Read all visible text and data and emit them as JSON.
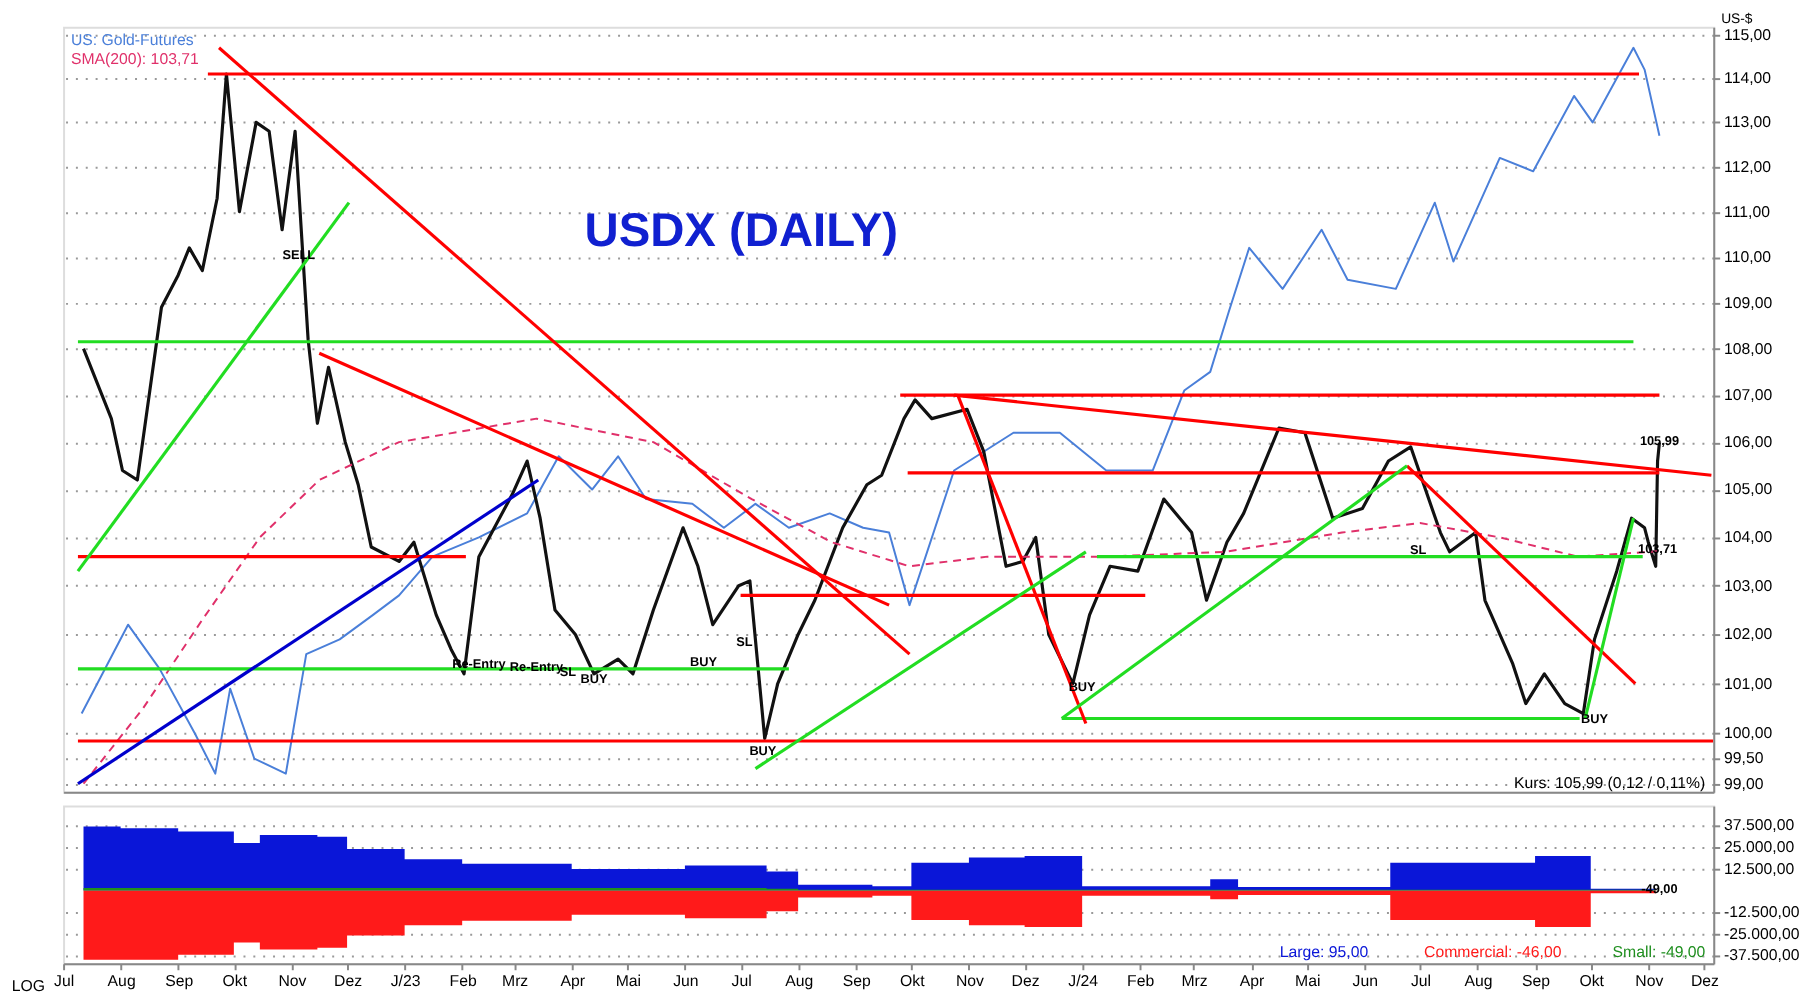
{
  "chart_data": [
    {
      "type": "line",
      "title": "USDX (DAILY)",
      "ylabel": "US-$",
      "log": true,
      "grid": "y",
      "legend": "top left",
      "tick_labels": "y",
      "marker": "none",
      "xlim": [
        "2022-07-01",
        "2024-12-06"
      ],
      "ylim": [
        98.84,
        115.18
      ],
      "yticks": [
        {
          "value": 99,
          "label": "99,00"
        },
        {
          "value": 99.5,
          "label": "99,50"
        },
        {
          "value": 100,
          "label": "100,00"
        },
        {
          "value": 101,
          "label": "101,00"
        },
        {
          "value": 102,
          "label": "102,00"
        },
        {
          "value": 103,
          "label": "103,00"
        },
        {
          "value": 104,
          "label": "104,00"
        },
        {
          "value": 105,
          "label": "105,00"
        },
        {
          "value": 106,
          "label": "106,00"
        },
        {
          "value": 107,
          "label": "107,00"
        },
        {
          "value": 108,
          "label": "108,00"
        },
        {
          "value": 109,
          "label": "109,00"
        },
        {
          "value": 110,
          "label": "110,00"
        },
        {
          "value": 111,
          "label": "111,00"
        },
        {
          "value": 112,
          "label": "112,00"
        },
        {
          "value": 113,
          "label": "113,00"
        },
        {
          "value": 114,
          "label": "114,00"
        },
        {
          "value": 115,
          "label": "115,00"
        }
      ],
      "series": [
        {
          "name": "US: Gold-Futures",
          "color": "#4a7fd9",
          "x": [
            "2022-07-11",
            "2022-08-05",
            "2022-08-22",
            "2022-09-10",
            "2022-09-21",
            "2022-09-29",
            "2022-10-12",
            "2022-10-29",
            "2022-11-09",
            "2022-11-27",
            "2022-12-15",
            "2022-12-29",
            "2023-01-16",
            "2023-02-10",
            "2023-03-08",
            "2023-03-25",
            "2023-04-12",
            "2023-04-26",
            "2023-05-11",
            "2023-06-05",
            "2023-06-22",
            "2023-07-09",
            "2023-07-27",
            "2023-08-18",
            "2023-09-05",
            "2023-09-19",
            "2023-09-30",
            "2023-10-24",
            "2023-11-25",
            "2023-12-20",
            "2024-01-14",
            "2024-02-08",
            "2024-02-25",
            "2024-03-10",
            "2024-03-20",
            "2024-03-31",
            "2024-04-18",
            "2024-05-09",
            "2024-05-23",
            "2024-06-18",
            "2024-07-09",
            "2024-07-19",
            "2024-08-13",
            "2024-08-31",
            "2024-09-22",
            "2024-10-02",
            "2024-10-24",
            "2024-10-30",
            "2024-11-07"
          ],
          "values": [
            100.4,
            102.2,
            101.3,
            100.0,
            99.2,
            100.9,
            99.5,
            99.2,
            101.6,
            101.9,
            102.4,
            102.8,
            103.6,
            104.0,
            104.5,
            105.7,
            105.0,
            105.7,
            104.8,
            104.7,
            104.2,
            104.7,
            104.2,
            104.5,
            104.2,
            104.1,
            102.6,
            105.4,
            106.2,
            106.2,
            105.4,
            105.4,
            107.1,
            107.5,
            108.8,
            110.2,
            109.3,
            110.6,
            109.5,
            109.3,
            111.2,
            109.9,
            112.2,
            111.9,
            113.6,
            113.0,
            114.7,
            114.2,
            112.7
          ]
        },
        {
          "color": "#111111",
          "x": [
            "2022-07-12",
            "2022-07-27",
            "2022-08-02",
            "2022-08-10",
            "2022-08-23",
            "2022-09-01",
            "2022-09-07",
            "2022-09-14",
            "2022-09-22",
            "2022-09-27",
            "2022-10-04",
            "2022-10-13",
            "2022-10-20",
            "2022-10-27",
            "2022-11-03",
            "2022-11-10",
            "2022-11-15",
            "2022-11-21",
            "2022-11-30",
            "2022-12-07",
            "2022-12-14",
            "2022-12-29",
            "2023-01-06",
            "2023-01-18",
            "2023-01-26",
            "2023-02-02",
            "2023-02-10",
            "2023-02-28",
            "2023-03-08",
            "2023-03-15",
            "2023-03-23",
            "2023-04-03",
            "2023-04-13",
            "2023-04-26",
            "2023-05-04",
            "2023-05-15",
            "2023-05-31",
            "2023-06-08",
            "2023-06-16",
            "2023-06-30",
            "2023-07-06",
            "2023-07-14",
            "2023-07-21",
            "2023-08-01",
            "2023-08-10",
            "2023-08-25",
            "2023-09-07",
            "2023-09-15",
            "2023-09-27",
            "2023-10-03",
            "2023-10-12",
            "2023-10-31",
            "2023-11-09",
            "2023-11-21",
            "2023-11-30",
            "2023-12-07",
            "2023-12-14",
            "2023-12-27",
            "2024-01-05",
            "2024-01-16",
            "2024-01-31",
            "2024-02-14",
            "2024-02-29",
            "2024-03-08",
            "2024-03-19",
            "2024-03-28",
            "2024-04-16",
            "2024-04-30",
            "2024-05-15",
            "2024-05-31",
            "2024-06-14",
            "2024-06-26",
            "2024-07-12",
            "2024-07-17",
            "2024-07-31",
            "2024-08-05",
            "2024-08-20",
            "2024-08-27",
            "2024-09-06",
            "2024-09-17",
            "2024-09-27",
            "2024-10-03",
            "2024-10-15",
            "2024-10-23",
            "2024-10-30",
            "2024-11-01",
            "2024-11-05",
            "2024-11-06",
            "2024-11-07"
          ],
          "values": [
            108.0,
            106.5,
            105.4,
            105.2,
            108.9,
            109.6,
            110.2,
            109.7,
            111.3,
            114.1,
            111.0,
            113.0,
            112.8,
            110.6,
            112.8,
            108.2,
            106.4,
            107.6,
            106.0,
            105.1,
            103.8,
            103.5,
            103.9,
            102.4,
            101.7,
            101.2,
            103.6,
            104.9,
            105.6,
            104.4,
            102.5,
            102.0,
            101.2,
            101.5,
            101.2,
            102.5,
            104.2,
            103.4,
            102.2,
            103.0,
            103.1,
            99.9,
            101.0,
            102.0,
            102.7,
            104.2,
            105.1,
            105.3,
            106.5,
            106.9,
            106.5,
            106.7,
            105.8,
            103.4,
            103.5,
            104.0,
            102.0,
            101.0,
            102.4,
            103.4,
            103.3,
            104.8,
            104.1,
            102.7,
            103.9,
            104.5,
            106.3,
            106.2,
            104.4,
            104.6,
            105.6,
            105.9,
            104.1,
            103.7,
            104.1,
            102.7,
            101.4,
            100.6,
            101.2,
            100.6,
            100.4,
            101.9,
            103.3,
            104.4,
            104.2,
            103.9,
            103.4,
            105.6,
            105.99
          ]
        },
        {
          "name": "SMA(200): 103,71",
          "color": "#e0306a",
          "line_style": "dashed",
          "x": [
            "2022-07-12",
            "2022-08-13",
            "2022-09-14",
            "2022-10-15",
            "2022-11-16",
            "2022-12-29",
            "2023-03-13",
            "2023-05-15",
            "2023-07-07",
            "2023-08-19",
            "2023-09-30",
            "2023-11-11",
            "2024-01-14",
            "2024-03-18",
            "2024-05-20",
            "2024-07-01",
            "2024-08-13",
            "2024-09-24",
            "2024-11-06"
          ],
          "values": [
            99.0,
            100.5,
            102.3,
            104.0,
            105.2,
            106.0,
            106.5,
            106.0,
            104.8,
            103.9,
            103.4,
            103.6,
            103.6,
            103.7,
            104.1,
            104.3,
            104.0,
            103.6,
            103.71
          ]
        },
        {
          "color": "#ff0000",
          "x": [
            "2022-09-17",
            "2024-10-27"
          ],
          "values": [
            114.1,
            114.1
          ]
        },
        {
          "color": "#22dd22",
          "x": [
            "2022-07-09",
            "2024-10-24"
          ],
          "values": [
            108.15,
            108.15
          ]
        },
        {
          "color": "#ff0000",
          "x": [
            "2023-09-25",
            "2024-11-07"
          ],
          "values": [
            107.0,
            107.0
          ]
        },
        {
          "color": "#ff0000",
          "x": [
            "2023-09-29",
            "2024-11-07"
          ],
          "values": [
            105.35,
            105.35
          ]
        },
        {
          "color": "#ff0000",
          "x": [
            "2022-07-09",
            "2023-02-03"
          ],
          "values": [
            103.6,
            103.6
          ]
        },
        {
          "color": "#ff0000",
          "x": [
            "2023-07-01",
            "2024-02-04"
          ],
          "values": [
            102.8,
            102.8
          ]
        },
        {
          "color": "#22dd22",
          "x": [
            "2022-07-09",
            "2023-07-27"
          ],
          "values": [
            101.3,
            101.3
          ]
        },
        {
          "color": "#22dd22",
          "x": [
            "2024-01-09",
            "2024-10-29"
          ],
          "values": [
            103.6,
            103.6
          ]
        },
        {
          "color": "#22dd22",
          "x": [
            "2023-12-21",
            "2024-09-25"
          ],
          "values": [
            100.3,
            100.3
          ]
        },
        {
          "color": "#ff0000",
          "x": [
            "2022-07-09",
            "2024-12-06"
          ],
          "values": [
            99.85,
            99.85
          ]
        },
        {
          "color": "#ff0000",
          "x": [
            "2022-09-23",
            "2023-09-30"
          ],
          "values": [
            114.7,
            101.6
          ]
        },
        {
          "color": "#ff0000",
          "x": [
            "2022-11-16",
            "2023-09-19"
          ],
          "values": [
            107.9,
            102.6
          ]
        },
        {
          "color": "#ff0000",
          "x": [
            "2023-10-24",
            "2024-12-05"
          ],
          "values": [
            107.0,
            105.3
          ]
        },
        {
          "color": "#ff0000",
          "x": [
            "2023-10-26",
            "2024-01-03"
          ],
          "values": [
            107.0,
            100.2
          ]
        },
        {
          "color": "#ff0000",
          "x": [
            "2024-06-24",
            "2024-10-25"
          ],
          "values": [
            105.5,
            101.0
          ]
        },
        {
          "color": "#22dd22",
          "x": [
            "2022-07-09",
            "2022-12-02"
          ],
          "values": [
            103.3,
            111.2
          ]
        },
        {
          "color": "#0000cc",
          "x": [
            "2022-07-09",
            "2023-03-14"
          ],
          "values": [
            99.0,
            105.2
          ]
        },
        {
          "color": "#22dd22",
          "x": [
            "2023-07-09",
            "2024-01-03"
          ],
          "values": [
            99.3,
            103.7
          ]
        },
        {
          "color": "#22dd22",
          "x": [
            "2023-12-21",
            "2024-06-24"
          ],
          "values": [
            100.3,
            105.5
          ]
        },
        {
          "color": "#22dd22",
          "x": [
            "2024-09-28",
            "2024-10-24"
          ],
          "values": [
            100.3,
            104.4
          ]
        }
      ],
      "annotations": [
        {
          "text": "SELL",
          "x": "2022-11-05",
          "y": 110.0
        },
        {
          "text": "Re-Entry",
          "x": "2023-02-10",
          "y": 101.35
        },
        {
          "text": "Re-Entry",
          "x": "2023-03-13",
          "y": 101.3
        },
        {
          "text": "SL",
          "x": "2023-03-30",
          "y": 101.2
        },
        {
          "text": "BUY",
          "x": "2023-04-13",
          "y": 101.05
        },
        {
          "text": "BUY",
          "x": "2023-06-11",
          "y": 101.4
        },
        {
          "text": "SL",
          "x": "2023-07-03",
          "y": 101.8
        },
        {
          "text": "BUY",
          "x": "2023-07-13",
          "y": 99.6
        },
        {
          "text": "BUY",
          "x": "2024-01-01",
          "y": 100.9
        },
        {
          "text": "SL",
          "x": "2024-06-30",
          "y": 103.7
        },
        {
          "text": "BUY",
          "x": "2024-10-03",
          "y": 100.25
        },
        {
          "text": "105,99",
          "x": "2024-11-07",
          "y": 105.99
        },
        {
          "text": "103,71",
          "x": "2024-11-06",
          "y": 103.71
        },
        "Kurs: 105,99 (0,12 / 0,11%)"
      ]
    },
    {
      "type": "area",
      "grid": "y",
      "legend": "bottom right",
      "xlim": [
        "2022-07-01",
        "2024-12-06"
      ],
      "ylim": [
        -42000,
        49000
      ],
      "xticks": [
        {
          "value": "2022-07-01",
          "label": "Jul"
        },
        {
          "value": "2022-08-01",
          "label": "Aug"
        },
        {
          "value": "2022-09-01",
          "label": "Sep"
        },
        {
          "value": "2022-10-01",
          "label": "Okt"
        },
        {
          "value": "2022-11-01",
          "label": "Nov"
        },
        {
          "value": "2022-12-01",
          "label": "Dez"
        },
        {
          "value": "2023-01-01",
          "label": "J/23"
        },
        {
          "value": "2023-02-01",
          "label": "Feb"
        },
        {
          "value": "2023-03-01",
          "label": "Mrz"
        },
        {
          "value": "2023-04-01",
          "label": "Apr"
        },
        {
          "value": "2023-05-01",
          "label": "Mai"
        },
        {
          "value": "2023-06-01",
          "label": "Jun"
        },
        {
          "value": "2023-07-01",
          "label": "Jul"
        },
        {
          "value": "2023-08-01",
          "label": "Aug"
        },
        {
          "value": "2023-09-01",
          "label": "Sep"
        },
        {
          "value": "2023-10-01",
          "label": "Okt"
        },
        {
          "value": "2023-11-01",
          "label": "Nov"
        },
        {
          "value": "2023-12-01",
          "label": "Dez"
        },
        {
          "value": "2024-01-01",
          "label": "J/24"
        },
        {
          "value": "2024-02-01",
          "label": "Feb"
        },
        {
          "value": "2024-03-01",
          "label": "Mrz"
        },
        {
          "value": "2024-04-01",
          "label": "Apr"
        },
        {
          "value": "2024-05-01",
          "label": "Mai"
        },
        {
          "value": "2024-06-01",
          "label": "Jun"
        },
        {
          "value": "2024-07-01",
          "label": "Jul"
        },
        {
          "value": "2024-08-01",
          "label": "Aug"
        },
        {
          "value": "2024-09-01",
          "label": "Sep"
        },
        {
          "value": "2024-10-01",
          "label": "Okt"
        },
        {
          "value": "2024-11-01",
          "label": "Nov"
        },
        {
          "value": "2024-12-01",
          "label": "Dez"
        }
      ],
      "yticks": [
        {
          "value": 37500,
          "label": "37.500,00"
        },
        {
          "value": 25000,
          "label": "25.000,00"
        },
        {
          "value": 12500,
          "label": "12.500,00"
        },
        {
          "value": -12500,
          "label": "-12.500,00"
        },
        {
          "value": -25000,
          "label": "-25.000,00"
        },
        {
          "value": -37500,
          "label": "-37.500,00"
        }
      ],
      "series": [
        {
          "name": "Large: 95,00",
          "color": "#0a16d8",
          "x": [
            "2022-07-12",
            "2022-08-01",
            "2022-09-01",
            "2022-10-01",
            "2022-10-15",
            "2022-11-15",
            "2022-12-01",
            "2023-01-01",
            "2023-02-01",
            "2023-04-01",
            "2023-06-01",
            "2023-07-15",
            "2023-08-01",
            "2023-09-10",
            "2023-10-01",
            "2023-11-01",
            "2023-12-01",
            "2024-01-01",
            "2024-03-10",
            "2024-03-25",
            "2024-06-15",
            "2024-08-01",
            "2024-09-01",
            "2024-10-01",
            "2024-11-05",
            "2024-11-07"
          ],
          "values": [
            37000,
            36000,
            34000,
            27500,
            32000,
            31000,
            24000,
            18000,
            15500,
            12500,
            14500,
            11000,
            3300,
            2500,
            16000,
            19000,
            20000,
            2500,
            6500,
            2000,
            16000,
            16000,
            20000,
            1000,
            95,
            95
          ]
        },
        {
          "name": "Commercial: -46,00",
          "color": "#ff1a1a",
          "x": [
            "2022-07-12",
            "2022-09-01",
            "2022-10-01",
            "2022-10-15",
            "2022-11-15",
            "2022-12-01",
            "2023-01-01",
            "2023-02-01",
            "2023-04-01",
            "2023-06-01",
            "2023-07-15",
            "2023-08-01",
            "2023-09-10",
            "2023-10-01",
            "2023-11-01",
            "2023-12-01",
            "2024-01-01",
            "2024-03-10",
            "2024-03-25",
            "2024-06-15",
            "2024-08-01",
            "2024-09-01",
            "2024-10-01",
            "2024-11-05",
            "2024-11-07"
          ],
          "values": [
            -40000,
            -37000,
            -30000,
            -34000,
            -33000,
            -26000,
            -20000,
            -17500,
            -14000,
            -16000,
            -12000,
            -4000,
            -3000,
            -17000,
            -20000,
            -21000,
            -3000,
            -5000,
            -2500,
            -17000,
            -17000,
            -21000,
            -1500,
            -46,
            -46
          ]
        },
        {
          "name": "Small: -49,00",
          "color": "#1f8f1f",
          "x": [
            "2022-07-12",
            "2023-07-15",
            "2023-08-01",
            "2024-11-05",
            "2024-11-07"
          ],
          "values": [
            1500,
            1000,
            500,
            -49,
            -49
          ]
        }
      ],
      "annotations": [
        {
          "text": "-49,00",
          "x": "2024-11-07",
          "y": -49
        },
        "LOG"
      ]
    }
  ]
}
